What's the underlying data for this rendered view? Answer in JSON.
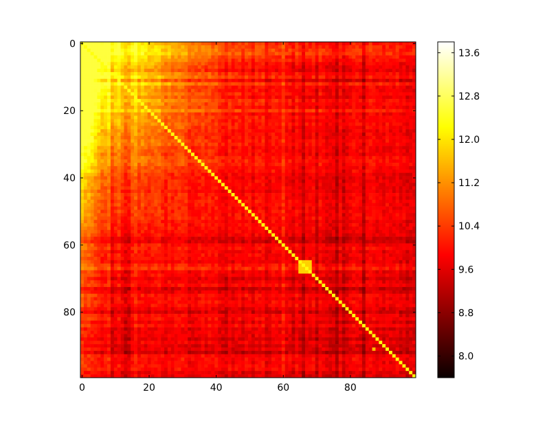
{
  "chart_data": {
    "type": "heatmap",
    "title": "",
    "xlabel": "",
    "ylabel": "",
    "size": 100,
    "colormap": "hot",
    "value_range": [
      7.6,
      13.8
    ],
    "x_ticks": [
      "0",
      "20",
      "40",
      "60",
      "80"
    ],
    "x_tick_values": [
      0,
      20,
      40,
      60,
      80
    ],
    "y_ticks": [
      "0",
      "20",
      "40",
      "60",
      "80"
    ],
    "y_tick_values": [
      0,
      20,
      40,
      60,
      80
    ],
    "colorbar": {
      "ticks": [
        "8.0",
        "8.8",
        "9.6",
        "10.4",
        "11.2",
        "12.0",
        "12.8",
        "13.6"
      ],
      "tick_values": [
        8.0,
        8.8,
        9.6,
        10.4,
        11.2,
        12.0,
        12.8,
        13.6
      ]
    },
    "diagonal_value": 12.3,
    "base_value": 10.1,
    "top_left_corner_value": 12.6,
    "off_diagonal_range": [
      7.8,
      12.6
    ],
    "highlights": [
      {
        "row_range": [
          65,
          68
        ],
        "col_range": [
          65,
          68
        ],
        "value": 11.8
      },
      {
        "row_range": [
          86,
          86
        ],
        "col_range": [
          86,
          86
        ],
        "value": 12.2
      },
      {
        "row_range": [
          91,
          91
        ],
        "col_range": [
          87,
          87
        ],
        "value": 11.6
      }
    ],
    "dark_rows": [
      8,
      11,
      58,
      59,
      70,
      73,
      74,
      80,
      85,
      88,
      90,
      92
    ],
    "dark_cols": [
      9,
      12,
      13,
      14,
      43,
      63,
      66,
      70,
      74,
      76,
      78,
      84
    ],
    "bright_rows": [
      0,
      1,
      2,
      3,
      10,
      12,
      20,
      66,
      67
    ],
    "bright_cols": [
      0,
      1,
      2,
      3,
      4,
      8,
      16,
      18,
      30,
      60
    ]
  }
}
